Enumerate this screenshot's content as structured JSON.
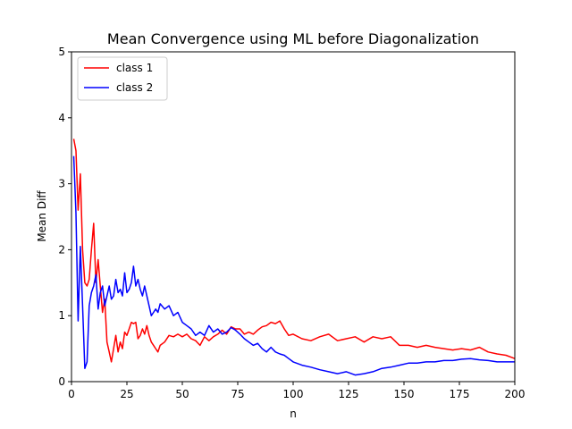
{
  "chart_data": {
    "type": "line",
    "title": "Mean Convergence using ML before Diagonalization",
    "xlabel": "n",
    "ylabel": "Mean Diff",
    "xlim": [
      0,
      200
    ],
    "ylim": [
      0,
      5
    ],
    "xticks": [
      0,
      25,
      50,
      75,
      100,
      125,
      150,
      175,
      200
    ],
    "yticks": [
      0,
      1,
      2,
      3,
      4,
      5
    ],
    "grid": false,
    "legend_position": "upper-left",
    "series": [
      {
        "name": "class 1",
        "color": "#ff0000",
        "x": [
          1,
          2,
          3,
          4,
          5,
          6,
          7,
          8,
          9,
          10,
          11,
          12,
          13,
          14,
          15,
          16,
          17,
          18,
          19,
          20,
          21,
          22,
          23,
          24,
          25,
          26,
          27,
          28,
          29,
          30,
          31,
          32,
          33,
          34,
          35,
          36,
          37,
          38,
          39,
          40,
          42,
          44,
          46,
          48,
          50,
          52,
          54,
          56,
          58,
          60,
          62,
          64,
          66,
          68,
          70,
          72,
          74,
          76,
          78,
          80,
          82,
          84,
          86,
          88,
          90,
          92,
          94,
          96,
          98,
          100,
          104,
          108,
          112,
          116,
          120,
          124,
          128,
          132,
          136,
          140,
          144,
          148,
          152,
          156,
          160,
          164,
          168,
          172,
          176,
          180,
          184,
          188,
          192,
          196,
          200
        ],
        "y": [
          3.68,
          3.5,
          2.6,
          3.15,
          2.0,
          1.5,
          1.45,
          1.55,
          2.0,
          2.4,
          1.5,
          1.85,
          1.45,
          1.05,
          1.25,
          0.6,
          0.45,
          0.3,
          0.5,
          0.7,
          0.45,
          0.6,
          0.5,
          0.75,
          0.7,
          0.8,
          0.9,
          0.88,
          0.9,
          0.65,
          0.7,
          0.8,
          0.72,
          0.85,
          0.7,
          0.6,
          0.55,
          0.5,
          0.45,
          0.55,
          0.6,
          0.7,
          0.68,
          0.72,
          0.68,
          0.72,
          0.65,
          0.62,
          0.55,
          0.68,
          0.62,
          0.68,
          0.72,
          0.78,
          0.72,
          0.83,
          0.8,
          0.8,
          0.72,
          0.75,
          0.72,
          0.78,
          0.83,
          0.85,
          0.9,
          0.88,
          0.92,
          0.8,
          0.7,
          0.72,
          0.65,
          0.62,
          0.68,
          0.72,
          0.62,
          0.65,
          0.68,
          0.6,
          0.68,
          0.65,
          0.68,
          0.55,
          0.55,
          0.52,
          0.55,
          0.52,
          0.5,
          0.48,
          0.5,
          0.48,
          0.52,
          0.45,
          0.42,
          0.4,
          0.35
        ]
      },
      {
        "name": "class 2",
        "color": "#0000ff",
        "x": [
          1,
          2,
          3,
          4,
          5,
          6,
          7,
          8,
          9,
          10,
          11,
          12,
          13,
          14,
          15,
          16,
          17,
          18,
          19,
          20,
          21,
          22,
          23,
          24,
          25,
          26,
          27,
          28,
          29,
          30,
          31,
          32,
          33,
          34,
          35,
          36,
          37,
          38,
          39,
          40,
          42,
          44,
          46,
          48,
          50,
          52,
          54,
          56,
          58,
          60,
          62,
          64,
          66,
          68,
          70,
          72,
          74,
          76,
          78,
          80,
          82,
          84,
          86,
          88,
          90,
          92,
          94,
          96,
          98,
          100,
          104,
          108,
          112,
          116,
          120,
          124,
          128,
          132,
          136,
          140,
          144,
          148,
          152,
          156,
          160,
          164,
          168,
          172,
          176,
          180,
          184,
          188,
          192,
          196,
          200
        ],
        "y": [
          3.42,
          2.55,
          0.92,
          2.05,
          1.15,
          0.2,
          0.3,
          1.15,
          1.35,
          1.45,
          1.62,
          1.1,
          1.35,
          1.45,
          1.15,
          1.3,
          1.45,
          1.25,
          1.3,
          1.55,
          1.35,
          1.4,
          1.3,
          1.65,
          1.35,
          1.4,
          1.5,
          1.75,
          1.45,
          1.55,
          1.4,
          1.3,
          1.45,
          1.3,
          1.15,
          1.0,
          1.05,
          1.1,
          1.05,
          1.18,
          1.1,
          1.15,
          1.0,
          1.05,
          0.9,
          0.85,
          0.8,
          0.7,
          0.75,
          0.7,
          0.85,
          0.75,
          0.8,
          0.72,
          0.75,
          0.82,
          0.78,
          0.72,
          0.65,
          0.6,
          0.55,
          0.58,
          0.5,
          0.45,
          0.52,
          0.45,
          0.42,
          0.4,
          0.35,
          0.3,
          0.25,
          0.22,
          0.18,
          0.15,
          0.12,
          0.15,
          0.1,
          0.12,
          0.15,
          0.2,
          0.22,
          0.25,
          0.28,
          0.28,
          0.3,
          0.3,
          0.32,
          0.32,
          0.34,
          0.35,
          0.33,
          0.32,
          0.3,
          0.3,
          0.3
        ]
      }
    ]
  }
}
